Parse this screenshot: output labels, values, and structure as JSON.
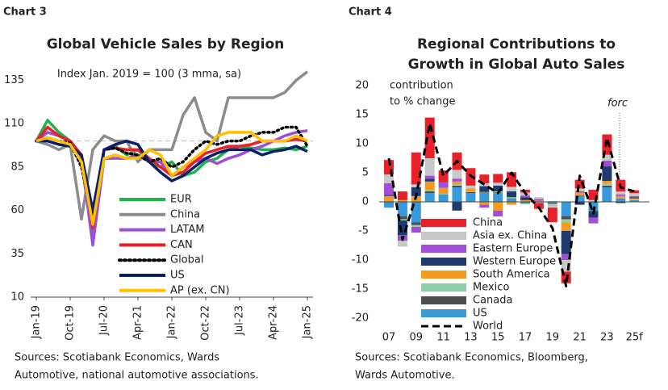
{
  "chart_data": [
    {
      "type": "line",
      "label": "Chart 3",
      "title": "Global Vehicle Sales by Region",
      "annotation": "Index Jan. 2019 = 100 (3 mma, sa)",
      "categories": [
        "Jan-19",
        null,
        null,
        "Oct-19",
        null,
        null,
        "Jul-20",
        null,
        null,
        "Apr-21",
        null,
        null,
        "Jan-22",
        null,
        null,
        "Oct-22",
        null,
        null,
        "Jul-23",
        null,
        null,
        "Apr-24",
        null,
        null,
        "Jan-25"
      ],
      "ylim": [
        10,
        145
      ],
      "yticks": [
        10,
        35,
        60,
        85,
        110,
        135
      ],
      "reference_line": 100,
      "series": [
        {
          "name": "EUR",
          "color": "#22b14c",
          "style": "solid",
          "values": [
            100,
            112,
            105,
            100,
            88,
            45,
            95,
            97,
            92,
            95,
            88,
            85,
            88,
            80,
            82,
            88,
            90,
            95,
            97,
            96,
            95,
            95,
            96,
            95,
            97
          ]
        },
        {
          "name": "China",
          "color": "#8c8c8c",
          "style": "solid",
          "values": [
            100,
            98,
            95,
            98,
            55,
            95,
            103,
            100,
            100,
            88,
            95,
            95,
            95,
            115,
            125,
            105,
            100,
            125,
            125,
            125,
            125,
            125,
            128,
            135,
            140
          ]
        },
        {
          "name": "LATAM",
          "color": "#9b4fd8",
          "style": "solid",
          "values": [
            100,
            105,
            103,
            100,
            90,
            40,
            90,
            90,
            90,
            92,
            88,
            88,
            80,
            85,
            88,
            90,
            87,
            90,
            92,
            95,
            97,
            100,
            103,
            105,
            106
          ]
        },
        {
          "name": "CAN",
          "color": "#e8202a",
          "style": "solid",
          "values": [
            100,
            108,
            103,
            100,
            92,
            50,
            95,
            96,
            95,
            95,
            90,
            85,
            80,
            82,
            88,
            93,
            95,
            97,
            97,
            98,
            100,
            100,
            100,
            101,
            100
          ]
        },
        {
          "name": "Global",
          "color": "#000000",
          "style": "dotted",
          "values": [
            100,
            102,
            100,
            99,
            85,
            55,
            95,
            96,
            93,
            92,
            88,
            90,
            85,
            88,
            95,
            100,
            98,
            100,
            100,
            103,
            105,
            105,
            108,
            108,
            97
          ]
        },
        {
          "name": "US",
          "color": "#0a1f6b",
          "style": "solid",
          "values": [
            100,
            100,
            98,
            97,
            92,
            60,
            95,
            98,
            100,
            98,
            88,
            82,
            77,
            80,
            85,
            90,
            93,
            95,
            95,
            95,
            92,
            94,
            95,
            97,
            94
          ]
        },
        {
          "name": "AP (ex. CN)",
          "color": "#ffc000",
          "style": "solid",
          "values": [
            100,
            102,
            100,
            98,
            88,
            52,
            90,
            92,
            90,
            90,
            95,
            92,
            80,
            85,
            90,
            95,
            103,
            105,
            105,
            105,
            100,
            100,
            100,
            103,
            100
          ]
        }
      ],
      "source": [
        "Sources: Scotiabank Economics, Wards",
        "Automotive, national automotive associations."
      ]
    },
    {
      "type": "stacked_bar",
      "label": "Chart 4",
      "title": [
        "Regional Contributions to",
        "Growth in Global Auto Sales"
      ],
      "annotation": [
        "contribution",
        "to % change"
      ],
      "forecast_label": "forc",
      "categories": [
        "07",
        null,
        "09",
        null,
        "11",
        null,
        "13",
        null,
        "15",
        null,
        "17",
        null,
        "19",
        null,
        "21",
        null,
        "23",
        null,
        "25f"
      ],
      "ylim": [
        -20,
        20
      ],
      "yticks": [
        -20,
        -15,
        -10,
        -5,
        0,
        5,
        10,
        15,
        20
      ],
      "series": [
        {
          "name": "China",
          "color": "#e8202a",
          "values": [
            2.5,
            1.5,
            5.5,
            7,
            2,
            3,
            3,
            1.5,
            1.5,
            2.5,
            0.5,
            -1,
            -2.5,
            -2,
            1.5,
            1.8,
            3.5,
            2,
            0.5
          ]
        },
        {
          "name": "Asia ex. China",
          "color": "#c8c8c8",
          "values": [
            1.5,
            -1,
            0.5,
            3,
            0,
            1.5,
            0.5,
            0.5,
            0.5,
            0.8,
            0.5,
            0.3,
            -0.5,
            -2,
            0.5,
            0.2,
            1,
            0.5,
            0.5
          ]
        },
        {
          "name": "Eastern Europe",
          "color": "#a24ed8",
          "values": [
            2,
            -1,
            -1,
            0.5,
            1,
            0.5,
            0,
            -0.5,
            -1,
            0,
            0.3,
            0.3,
            0.1,
            -1,
            0.2,
            -1,
            1,
            0.3,
            0.2
          ]
        },
        {
          "name": "Western Europe",
          "color": "#1f3a6e",
          "values": [
            0.2,
            -2.5,
            1.5,
            0.5,
            0,
            -1.5,
            0,
            1,
            1,
            1,
            0.5,
            0,
            0,
            -4,
            -0.5,
            -1,
            2.5,
            -0.2,
            0.2
          ]
        },
        {
          "name": "South America",
          "color": "#f39a1f",
          "values": [
            1,
            0.3,
            1,
            1.5,
            1,
            0.5,
            0.5,
            -0.5,
            -1.5,
            -0.5,
            0.3,
            0.2,
            0,
            -1.5,
            0.5,
            0,
            0.5,
            0.3,
            0.2
          ]
        },
        {
          "name": "Mexico",
          "color": "#8fcfa8",
          "values": [
            0,
            -0.2,
            -0.3,
            0.2,
            0.1,
            0.2,
            0.1,
            0.1,
            0.2,
            0.2,
            -0.1,
            -0.1,
            -0.1,
            -0.5,
            0,
            0.1,
            0.3,
            0.1,
            0.1
          ]
        },
        {
          "name": "Canada",
          "color": "#4d4d4d",
          "values": [
            0,
            -0.5,
            -0.5,
            0.3,
            0,
            0.3,
            0.2,
            0.1,
            0.1,
            0.1,
            0,
            -0.1,
            -0.1,
            -0.5,
            0.1,
            -0.2,
            0.3,
            0.1,
            0
          ]
        },
        {
          "name": "US",
          "color": "#3a9ad9",
          "values": [
            -1,
            -2.5,
            -3.5,
            1.5,
            1.3,
            2.5,
            1.5,
            1.5,
            1.5,
            0.5,
            -0.3,
            0,
            -0.3,
            -2.5,
            1,
            -1.5,
            2.5,
            0.5,
            0.3
          ]
        }
      ],
      "line_series": {
        "name": "World",
        "color": "#000000",
        "style": "dashed",
        "values": [
          7.5,
          -6.5,
          1,
          13.5,
          4.5,
          7,
          4.5,
          3,
          1.5,
          5,
          1.5,
          -1,
          -4.5,
          -14.5,
          4.5,
          -2,
          11,
          2.5,
          1.8
        ]
      },
      "source": [
        "Sources: Scotiabank Economics, Bloomberg,",
        "Wards Automotive."
      ]
    }
  ]
}
